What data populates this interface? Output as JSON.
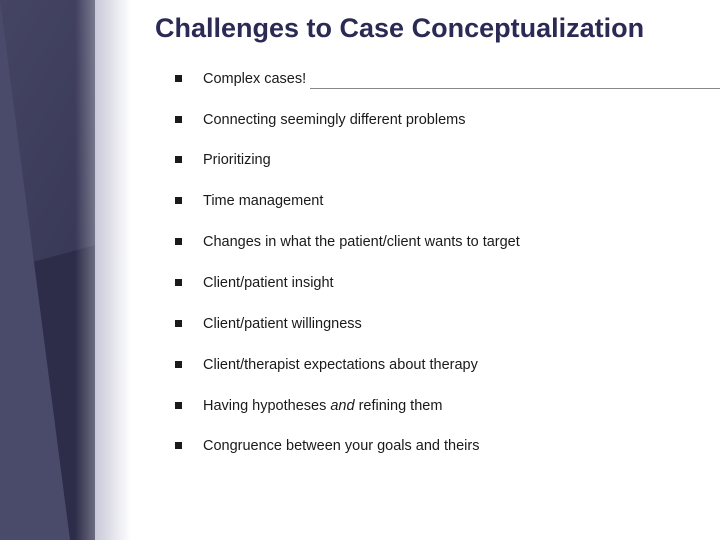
{
  "slide": {
    "title": "Challenges to Case Conceptualization",
    "bullets": [
      {
        "text": "Complex cases!"
      },
      {
        "text": "Connecting seemingly different problems"
      },
      {
        "text": "Prioritizing"
      },
      {
        "text": "Time management"
      },
      {
        "text": "Changes in what the patient/client wants to target"
      },
      {
        "text": "Client/patient insight"
      },
      {
        "text": "Client/patient willingness"
      },
      {
        "text": "Client/therapist expectations about therapy"
      },
      {
        "text_before": "Having hypotheses ",
        "italic": "and",
        "text_after": " refining them"
      },
      {
        "text": "Congruence between your goals and theirs"
      }
    ]
  },
  "styling": {
    "slide_bg": "#ffffff",
    "side_bg": "#2d2d4a",
    "title_color": "#2a2a55",
    "text_color": "#1a1a1a",
    "bullet_color": "#1a1a1a",
    "title_fontsize": 27,
    "body_fontsize": 14.5,
    "divider_color": "#888888",
    "side_width": 155,
    "slide_width": 720,
    "slide_height": 540
  }
}
